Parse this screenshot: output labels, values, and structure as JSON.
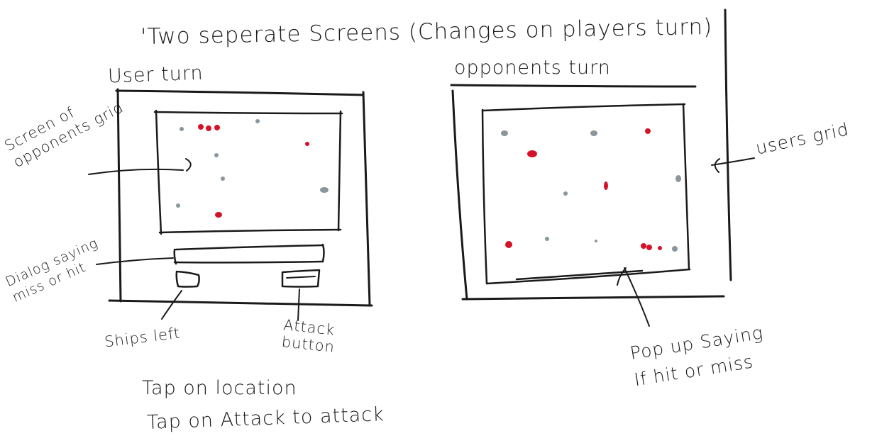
{
  "title": "'Two seperate Screens (Changes on players turn)",
  "screens": {
    "user_turn": {
      "label": "User turn"
    },
    "opponent_turn": {
      "label": "opponents turn"
    }
  },
  "annotations": {
    "opponent_grid_line1": "Screen of",
    "opponent_grid_line2": "opponents grid",
    "users_grid": "users grid",
    "dialog_line1": "Dialog saying",
    "dialog_line2": "miss or hit",
    "ships_left": "Ships left",
    "attack_line1": "Attack",
    "attack_line2": "button",
    "popup_line1": "Pop up Saying",
    "popup_line2": "If hit or miss"
  },
  "instructions": {
    "line1": "Tap on location",
    "line2": "Tap on Attack to attack"
  },
  "colors": {
    "hit": "#d41328",
    "miss": "#8a959c",
    "ink": "#1a1a1a"
  }
}
